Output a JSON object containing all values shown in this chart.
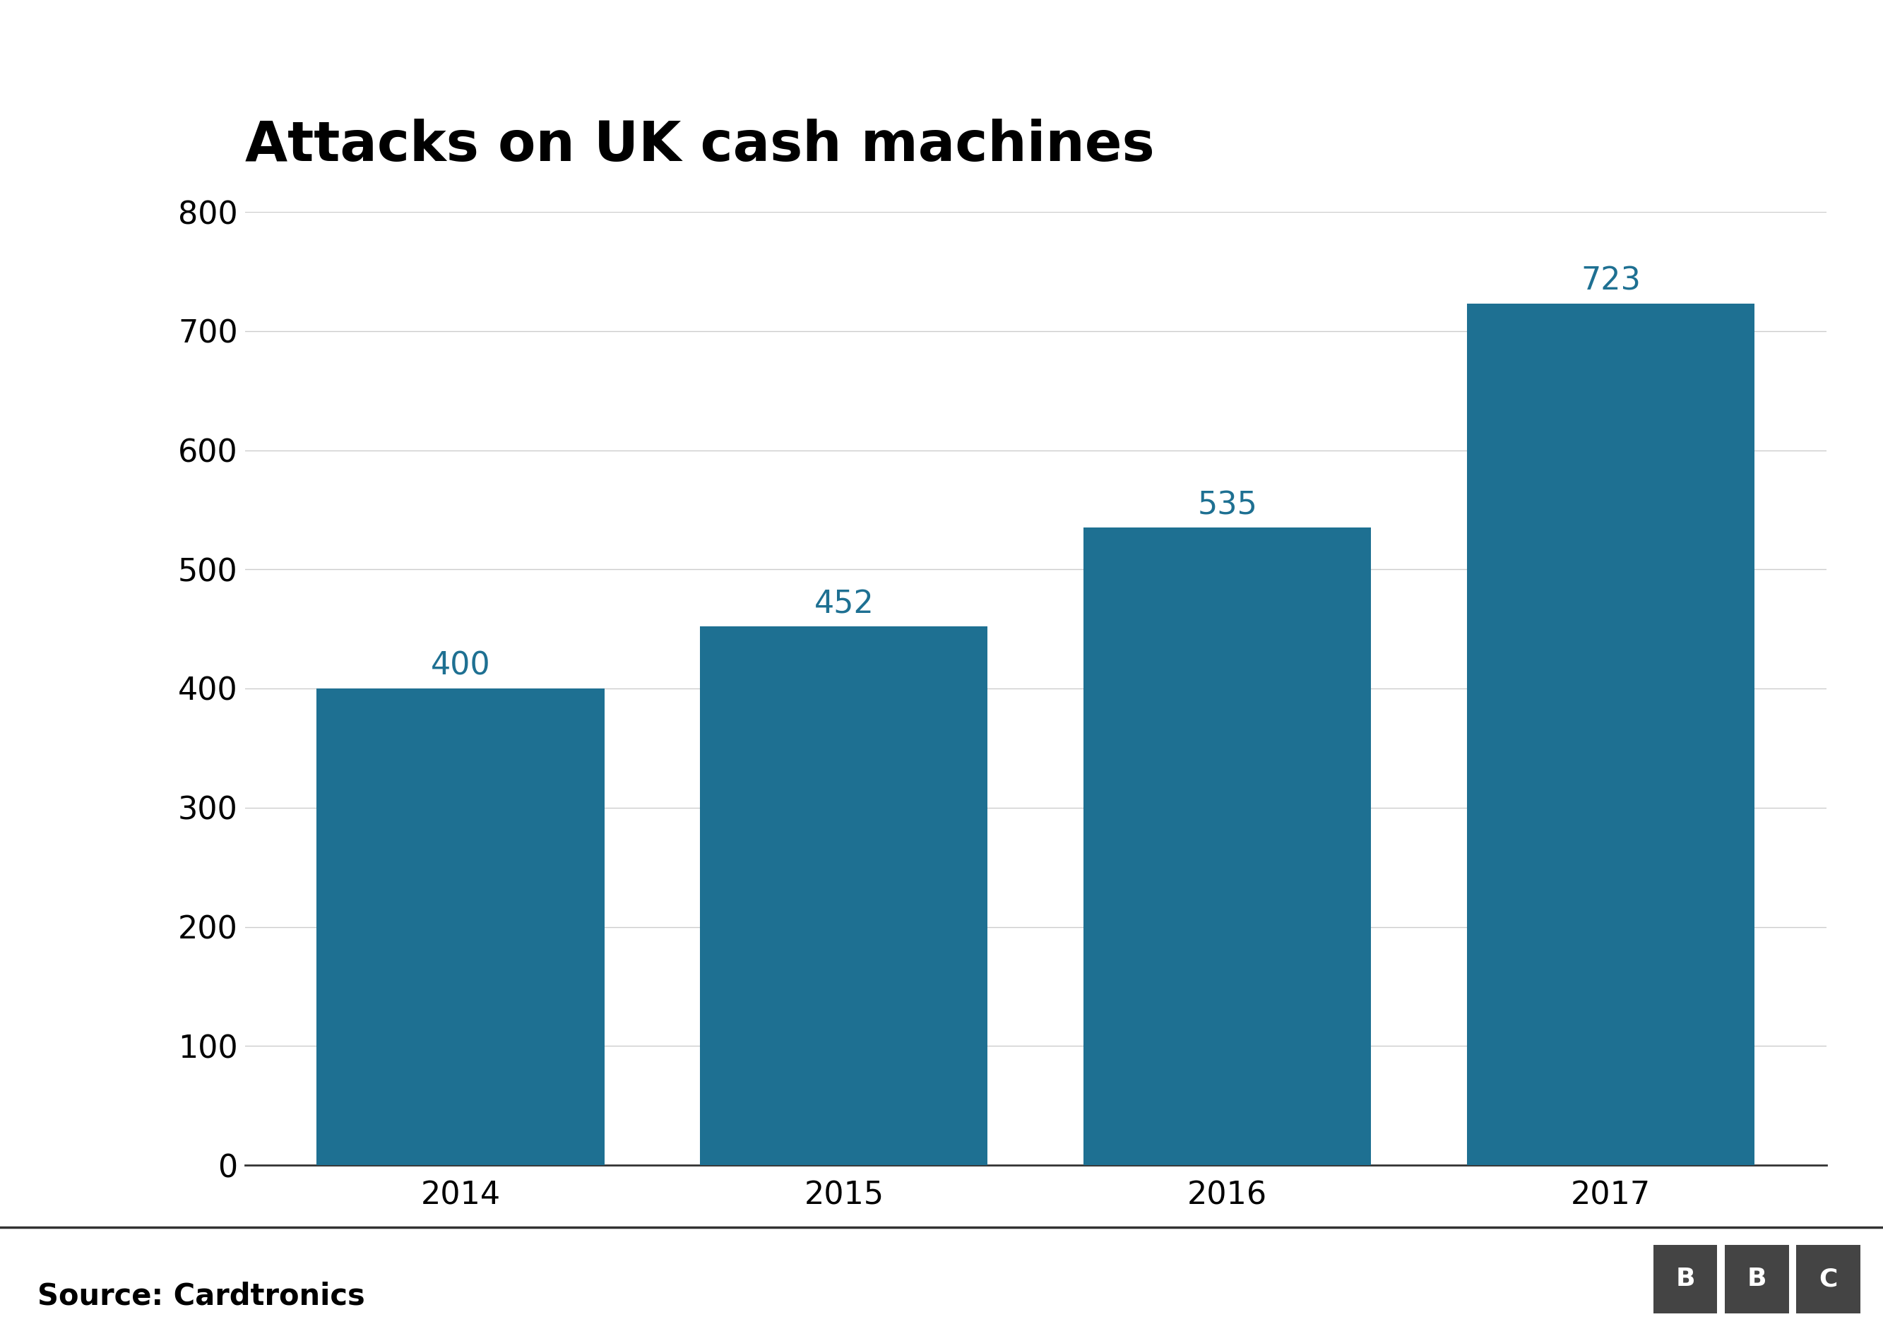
{
  "title": "Attacks on UK cash machines",
  "categories": [
    "2014",
    "2015",
    "2016",
    "2017"
  ],
  "values": [
    400,
    452,
    535,
    723
  ],
  "bar_color": "#1e7092",
  "label_color": "#1e7092",
  "background_color": "#ffffff",
  "ylim": [
    0,
    800
  ],
  "yticks": [
    0,
    100,
    200,
    300,
    400,
    500,
    600,
    700,
    800
  ],
  "title_fontsize": 56,
  "tick_fontsize": 32,
  "label_fontsize": 32,
  "source_text": "Source: Cardtronics",
  "source_fontsize": 30,
  "grid_color": "#cccccc",
  "axis_color": "#333333",
  "bar_width": 0.75
}
